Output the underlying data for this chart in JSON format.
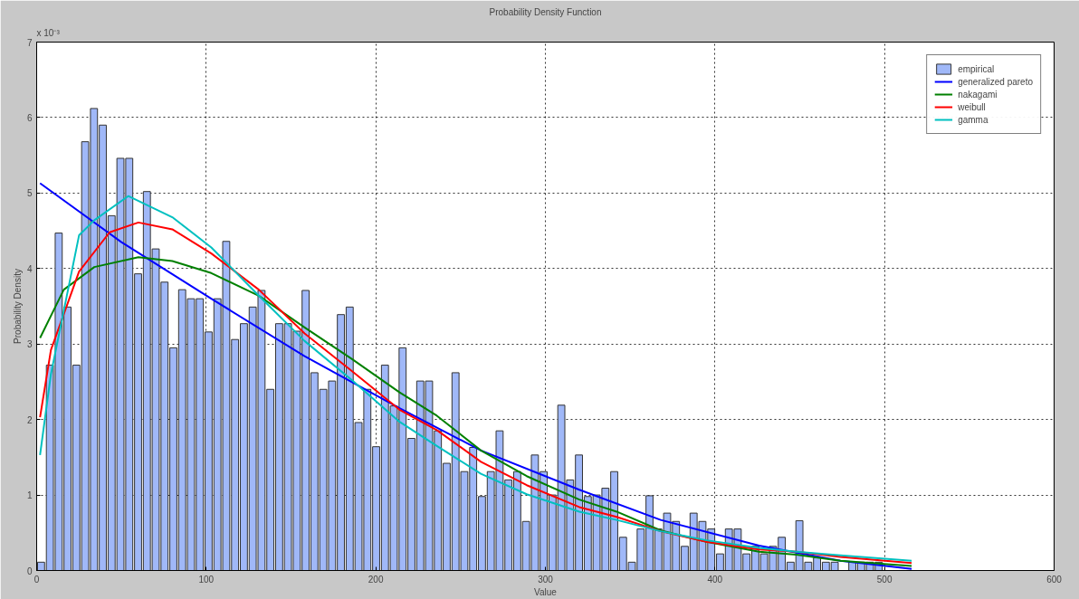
{
  "chart_data": {
    "type": "histogram",
    "title": "Probability Density Function",
    "xlabel": "Value",
    "ylabel": "Probability Density",
    "annotations": [
      "x 10⁻³"
    ],
    "xlim": [
      0,
      600
    ],
    "xticks": [
      0,
      100,
      200,
      300,
      400,
      500,
      600
    ],
    "ylim": [
      0,
      7
    ],
    "yticks": [
      0,
      1,
      2,
      3,
      4,
      5,
      6,
      7
    ],
    "grid": true,
    "legend": "top right",
    "series": [
      {
        "name": "empirical",
        "color": "#a0b8f8",
        "bins": [
          0,
          5.2,
          10.4,
          15.6,
          20.8,
          26,
          31.2,
          36.4,
          41.6,
          46.8,
          52,
          57.2,
          62.4,
          67.6,
          72.8,
          78,
          83.2,
          88.4,
          93.6,
          98.8,
          104,
          109.2,
          114.4,
          119.6,
          124.8,
          130,
          135.2,
          140.4,
          145.6,
          150.8,
          156,
          161.2,
          166.4,
          171.6,
          176.8,
          182,
          187.2,
          192.4,
          197.6,
          202.8,
          208,
          213.2,
          218.4,
          223.6,
          228.8,
          234,
          239.2,
          244.4,
          249.6,
          254.8,
          260,
          265.2,
          270.4,
          275.6,
          280.8,
          286,
          291.2,
          296.4,
          301.6,
          306.8,
          312,
          317.2,
          322.4,
          327.6,
          332.8,
          338,
          343.2,
          348.4,
          353.6,
          358.8,
          364,
          369.2,
          374.4,
          379.6,
          384.8,
          390,
          395.2,
          400.4,
          405.6,
          410.8,
          416,
          421.2,
          426.4,
          431.6,
          436.8,
          442,
          447.2,
          452.4,
          457.6,
          462.8,
          468,
          473.2,
          478.4,
          483.6,
          488.8,
          494,
          499.2
        ],
        "values": [
          0.11,
          2.72,
          4.47,
          3.49,
          2.72,
          5.68,
          6.12,
          5.9,
          4.7,
          5.46,
          5.46,
          3.93,
          5.02,
          4.26,
          3.82,
          2.95,
          3.72,
          3.6,
          3.6,
          3.16,
          3.6,
          4.36,
          3.06,
          3.27,
          3.49,
          3.71,
          2.4,
          3.27,
          3.27,
          3.17,
          3.71,
          2.62,
          2.4,
          2.51,
          3.39,
          3.49,
          1.96,
          2.4,
          1.64,
          2.72,
          2.18,
          2.95,
          1.75,
          2.51,
          2.51,
          1.85,
          1.42,
          2.62,
          1.31,
          1.63,
          0.98,
          1.31,
          1.85,
          1.2,
          1.31,
          0.65,
          1.53,
          1.31,
          1.0,
          2.19,
          1.2,
          1.53,
          0.98,
          1.0,
          1.09,
          1.31,
          0.44,
          0.11,
          0.55,
          0.99,
          0.55,
          0.76,
          0.65,
          0.32,
          0.76,
          0.65,
          0.55,
          0.22,
          0.55,
          0.55,
          0.22,
          0.32,
          0.22,
          0.32,
          0.44,
          0.11,
          0.66,
          0.11,
          0.17,
          0.11,
          0.11,
          0,
          0.11,
          0.11,
          0.11,
          0.11
        ]
      },
      {
        "name": "generalized pareto",
        "type": "line",
        "color": "#0000ff",
        "x": [
          2,
          50,
          103,
          158,
          214,
          262,
          320,
          368,
          426,
          474,
          516
        ],
        "values": [
          5.13,
          4.35,
          3.6,
          2.84,
          2.15,
          1.59,
          1.07,
          0.67,
          0.33,
          0.13,
          0.02
        ]
      },
      {
        "name": "nakagami",
        "type": "line",
        "color": "#008000",
        "x": [
          2,
          16,
          34,
          60,
          80,
          103,
          131,
          158,
          186,
          214,
          236,
          262,
          289,
          320,
          342,
          368,
          395,
          426,
          448,
          474,
          516
        ],
        "values": [
          3.08,
          3.72,
          4.02,
          4.15,
          4.1,
          3.94,
          3.64,
          3.22,
          2.8,
          2.36,
          2.05,
          1.59,
          1.25,
          0.94,
          0.78,
          0.53,
          0.38,
          0.25,
          0.21,
          0.13,
          0.06
        ]
      },
      {
        "name": "weibull",
        "type": "line",
        "color": "#ff0000",
        "x": [
          2,
          8.4,
          25,
          43,
          60,
          80,
          103,
          131,
          158,
          186,
          214,
          236,
          262,
          289,
          320,
          342,
          368,
          395,
          426,
          448,
          474,
          516
        ],
        "values": [
          2.03,
          2.92,
          3.96,
          4.48,
          4.61,
          4.52,
          4.2,
          3.72,
          3.14,
          2.64,
          2.13,
          1.86,
          1.44,
          1.13,
          0.84,
          0.71,
          0.52,
          0.38,
          0.28,
          0.25,
          0.18,
          0.1
        ]
      },
      {
        "name": "gamma",
        "type": "line",
        "color": "#00c0c0",
        "x": [
          2,
          8.4,
          25,
          34,
          54,
          80,
          103,
          131,
          158,
          186,
          214,
          236,
          262,
          289,
          320,
          342,
          368,
          395,
          426,
          448,
          474,
          516
        ],
        "values": [
          1.53,
          2.6,
          4.44,
          4.64,
          4.96,
          4.68,
          4.28,
          3.64,
          3.04,
          2.52,
          1.97,
          1.65,
          1.28,
          1.01,
          0.78,
          0.67,
          0.52,
          0.4,
          0.3,
          0.25,
          0.2,
          0.13
        ]
      }
    ]
  }
}
